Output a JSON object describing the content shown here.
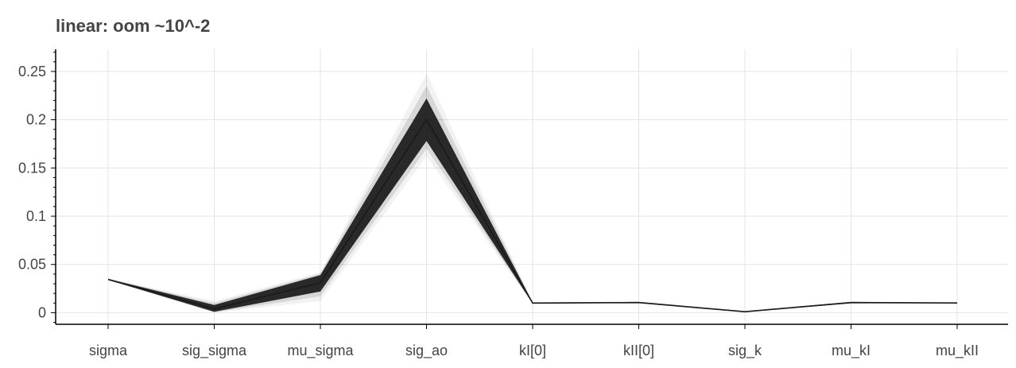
{
  "chart_data": {
    "type": "line",
    "title": "linear: oom ~10^-2",
    "xlabel": "",
    "ylabel": "",
    "categories": [
      "sigma",
      "sig_sigma",
      "mu_sigma",
      "sig_ao",
      "kI[0]",
      "kII[0]",
      "sig_k",
      "mu_kI",
      "mu_kII"
    ],
    "y_ticks": [
      0,
      0.05,
      0.1,
      0.15,
      0.2,
      0.25
    ],
    "y_tick_labels": [
      "0",
      "0.05",
      "0.1",
      "0.15",
      "0.2",
      "0.25"
    ],
    "ylim": [
      -0.012,
      0.273
    ],
    "grid": true,
    "legend": "none",
    "line_color": "#1a1a1a",
    "band": {
      "description_of_values": "ensemble of many overlapping lines; central value and spread per category",
      "center": [
        0.0345,
        0.004,
        0.031,
        0.2,
        0.01,
        0.0105,
        0.001,
        0.0105,
        0.0101
      ],
      "dense_low": [
        0.034,
        0.001,
        0.022,
        0.178,
        0.0095,
        0.0102,
        0.0008,
        0.0098,
        0.0098
      ],
      "dense_high": [
        0.035,
        0.008,
        0.039,
        0.222,
        0.0105,
        0.0112,
        0.0015,
        0.0112,
        0.0103
      ],
      "faint_low": [
        0.0335,
        0.0,
        0.012,
        0.162,
        0.009,
        0.0098,
        0.0005,
        0.0095,
        0.0096
      ],
      "faint_high": [
        0.0355,
        0.012,
        0.042,
        0.248,
        0.011,
        0.0116,
        0.0018,
        0.0116,
        0.0105
      ]
    }
  }
}
